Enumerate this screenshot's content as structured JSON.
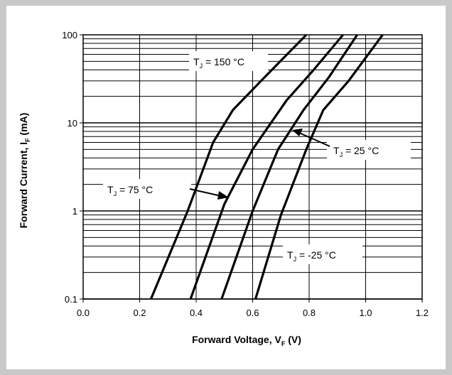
{
  "chart_data": {
    "type": "line",
    "xlabel": "Forward Voltage, V",
    "xlabel_sub": "F",
    "xlabel_unit": " (V)",
    "ylabel": "Forward Current, I",
    "ylabel_sub": "F",
    "ylabel_unit": " (mA)",
    "x_ticks": [
      "0.0",
      "0.2",
      "0.4",
      "0.6",
      "0.8",
      "1.0",
      "1.2"
    ],
    "y_ticks": [
      "0.1",
      "1",
      "10",
      "100"
    ],
    "xlim": [
      0,
      1.2
    ],
    "ylim": [
      0.1,
      100
    ],
    "y_scale": "log",
    "grid": true,
    "series": [
      {
        "name": "T_J = 150 °C",
        "x": [
          0.24,
          0.37,
          0.46,
          0.53,
          0.63,
          0.79
        ],
        "y": [
          0.1,
          1,
          6,
          14,
          30,
          100
        ]
      },
      {
        "name": "T_J = 75 °C",
        "x": [
          0.38,
          0.5,
          0.6,
          0.72,
          0.81,
          0.92
        ],
        "y": [
          0.1,
          1.2,
          5,
          18,
          38,
          100
        ]
      },
      {
        "name": "T_J = 25 °C",
        "x": [
          0.49,
          0.6,
          0.69,
          0.78,
          0.87,
          0.97
        ],
        "y": [
          0.1,
          1,
          5,
          14,
          33,
          100
        ]
      },
      {
        "name": "T_J = -25 °C",
        "x": [
          0.61,
          0.7,
          0.79,
          0.85,
          0.94,
          1.06
        ],
        "y": [
          0.1,
          0.9,
          5,
          14,
          30,
          100
        ]
      }
    ],
    "annotations": [
      {
        "prefix": "T",
        "sub": "J",
        "suffix": " = 150 °C"
      },
      {
        "prefix": "T",
        "sub": "J",
        "suffix": " = 75 °C"
      },
      {
        "prefix": "T",
        "sub": "J",
        "suffix": " = 25 °C"
      },
      {
        "prefix": "T",
        "sub": "J",
        "suffix": " = -25 °C"
      }
    ]
  }
}
